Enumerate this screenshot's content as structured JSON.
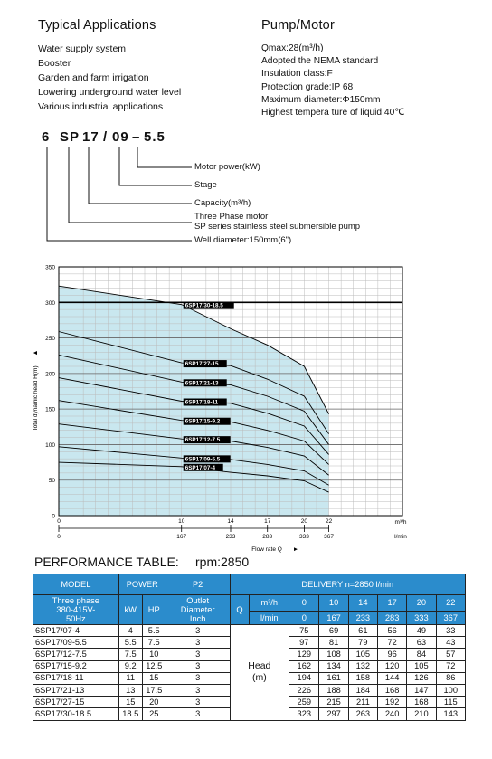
{
  "applications": {
    "title": "Typical Applications",
    "items": [
      "Water supply system",
      "Booster",
      "Garden and farm irrigation",
      "Lowering underground water level",
      "Various industrial applications"
    ]
  },
  "pump_motor": {
    "title": "Pump/Motor",
    "items": [
      "Qmax:28(m³/h)",
      "Adopted the NEMA standard",
      "Insulation class:F",
      "Protection grade:IP 68",
      "Maximum diameter:Φ150mm",
      "Highest tempera ture of liquid:40℃"
    ]
  },
  "model_code": {
    "parts": [
      "6",
      "SP",
      "17",
      "/",
      "09",
      "–",
      "5.5"
    ],
    "labels": {
      "motor": "Motor power(kW)",
      "stage": "Stage",
      "capacity": "Capacity(m³/h)",
      "series1": "Three Phase motor",
      "series2": "SP series stainless steel submersible pump",
      "well": "Well diameter:150mm(6\")"
    }
  },
  "chart_data": {
    "type": "line",
    "ylabel": "Total dynamic head H(m)",
    "xlabel": "Flow rate Q",
    "x_unit_top": "m³/h",
    "x_unit_bottom": "l/min",
    "ylim": [
      0,
      350
    ],
    "y_ticks": [
      0,
      50,
      100,
      150,
      200,
      250,
      300,
      350
    ],
    "x_ticks_top": [
      "0",
      "10",
      "14",
      "17",
      "20",
      "22"
    ],
    "x_ticks_bottom": [
      "0",
      "167",
      "233",
      "283",
      "333",
      "367"
    ],
    "x_tick_values": [
      0,
      10,
      14,
      17,
      20,
      22
    ],
    "grid": true,
    "series": [
      {
        "name": "6SP17/30-18.5",
        "x": [
          0,
          10,
          14,
          17,
          20,
          22
        ],
        "y": [
          323,
          297,
          263,
          240,
          210,
          143
        ]
      },
      {
        "name": "6SP17/27-15",
        "x": [
          0,
          10,
          14,
          17,
          20,
          22
        ],
        "y": [
          259,
          215,
          211,
          192,
          168,
          115
        ]
      },
      {
        "name": "6SP17/21-13",
        "x": [
          0,
          10,
          14,
          17,
          20,
          22
        ],
        "y": [
          226,
          188,
          184,
          168,
          147,
          100
        ]
      },
      {
        "name": "6SP17/18-11",
        "x": [
          0,
          10,
          14,
          17,
          20,
          22
        ],
        "y": [
          194,
          161,
          158,
          144,
          126,
          86
        ]
      },
      {
        "name": "6SP17/15-9.2",
        "x": [
          0,
          10,
          14,
          17,
          20,
          22
        ],
        "y": [
          162,
          134,
          132,
          120,
          105,
          72
        ]
      },
      {
        "name": "6SP17/12-7.5",
        "x": [
          0,
          10,
          14,
          17,
          20,
          22
        ],
        "y": [
          129,
          108,
          105,
          96,
          84,
          57
        ]
      },
      {
        "name": "6SP17/09-5.5",
        "x": [
          0,
          10,
          14,
          17,
          20,
          22
        ],
        "y": [
          97,
          81,
          79,
          72,
          63,
          43
        ]
      },
      {
        "name": "6SP17/07-4",
        "x": [
          0,
          10,
          14,
          17,
          20,
          22
        ],
        "y": [
          75,
          69,
          61,
          56,
          49,
          33
        ]
      }
    ]
  },
  "performance": {
    "title": "PERFORMANCE TABLE:",
    "rpm": "rpm:2850",
    "headers": {
      "model": "MODEL",
      "power": "POWER",
      "p2": "P2",
      "delivery": "DELIVERY    n=2850 l/min",
      "phase": [
        "Three phase",
        "380-415V-",
        "50Hz"
      ],
      "kw": "kW",
      "hp": "HP",
      "outlet": [
        "Outlet",
        "Diameter",
        "Inch"
      ],
      "q": "Q",
      "m3h": "m³/h",
      "lmin": "l/min",
      "q_m3h": [
        "0",
        "10",
        "14",
        "17",
        "20",
        "22"
      ],
      "q_lmin": [
        "0",
        "167",
        "233",
        "283",
        "333",
        "367"
      ],
      "head": "Head",
      "head_unit": "(m)"
    },
    "rows": [
      {
        "model": "6SP17/07-4",
        "kw": "4",
        "hp": "5.5",
        "p2": "3",
        "h": [
          "75",
          "69",
          "61",
          "56",
          "49",
          "33"
        ]
      },
      {
        "model": "6SP17/09-5.5",
        "kw": "5.5",
        "hp": "7.5",
        "p2": "3",
        "h": [
          "97",
          "81",
          "79",
          "72",
          "63",
          "43"
        ]
      },
      {
        "model": "6SP17/12-7.5",
        "kw": "7.5",
        "hp": "10",
        "p2": "3",
        "h": [
          "129",
          "108",
          "105",
          "96",
          "84",
          "57"
        ]
      },
      {
        "model": "6SP17/15-9.2",
        "kw": "9.2",
        "hp": "12.5",
        "p2": "3",
        "h": [
          "162",
          "134",
          "132",
          "120",
          "105",
          "72"
        ]
      },
      {
        "model": "6SP17/18-11",
        "kw": "11",
        "hp": "15",
        "p2": "3",
        "h": [
          "194",
          "161",
          "158",
          "144",
          "126",
          "86"
        ]
      },
      {
        "model": "6SP17/21-13",
        "kw": "13",
        "hp": "17.5",
        "p2": "3",
        "h": [
          "226",
          "188",
          "184",
          "168",
          "147",
          "100"
        ]
      },
      {
        "model": "6SP17/27-15",
        "kw": "15",
        "hp": "20",
        "p2": "3",
        "h": [
          "259",
          "215",
          "211",
          "192",
          "168",
          "115"
        ]
      },
      {
        "model": "6SP17/30-18.5",
        "kw": "18.5",
        "hp": "25",
        "p2": "3",
        "h": [
          "323",
          "297",
          "263",
          "240",
          "210",
          "143"
        ]
      }
    ]
  },
  "colors": {
    "header_blue": "#2b8ccc",
    "curve_fill": "#bfe3ec"
  }
}
